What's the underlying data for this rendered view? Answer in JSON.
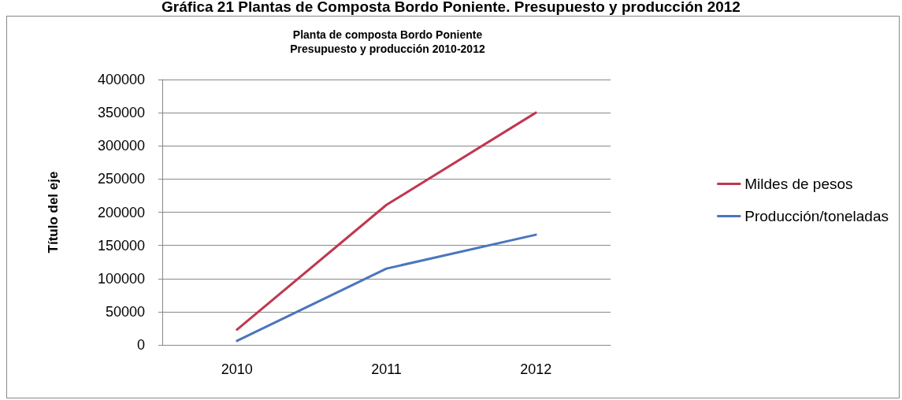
{
  "chart_data": {
    "type": "line",
    "title": "Gráfica 21 Plantas de Composta Bordo Poniente. Presupuesto y producción 2012",
    "subtitle": "Planta de composta Bordo Poniente\nPresupuesto y producción 2010-2012",
    "ylabel": "Título del eje",
    "categories": [
      "2010",
      "2011",
      "2012"
    ],
    "series": [
      {
        "name": "Mildes de pesos",
        "color": "#c0384f",
        "values": [
          23000,
          211000,
          350000
        ]
      },
      {
        "name": "Producción/toneladas",
        "color": "#4a76bd",
        "values": [
          6000,
          115000,
          166000
        ]
      }
    ],
    "ylim": [
      0,
      400000
    ],
    "yticks": [
      0,
      50000,
      100000,
      150000,
      200000,
      250000,
      300000,
      350000,
      400000
    ],
    "grid": "y",
    "legend": "right",
    "marker": "none",
    "line_style": "solid"
  }
}
